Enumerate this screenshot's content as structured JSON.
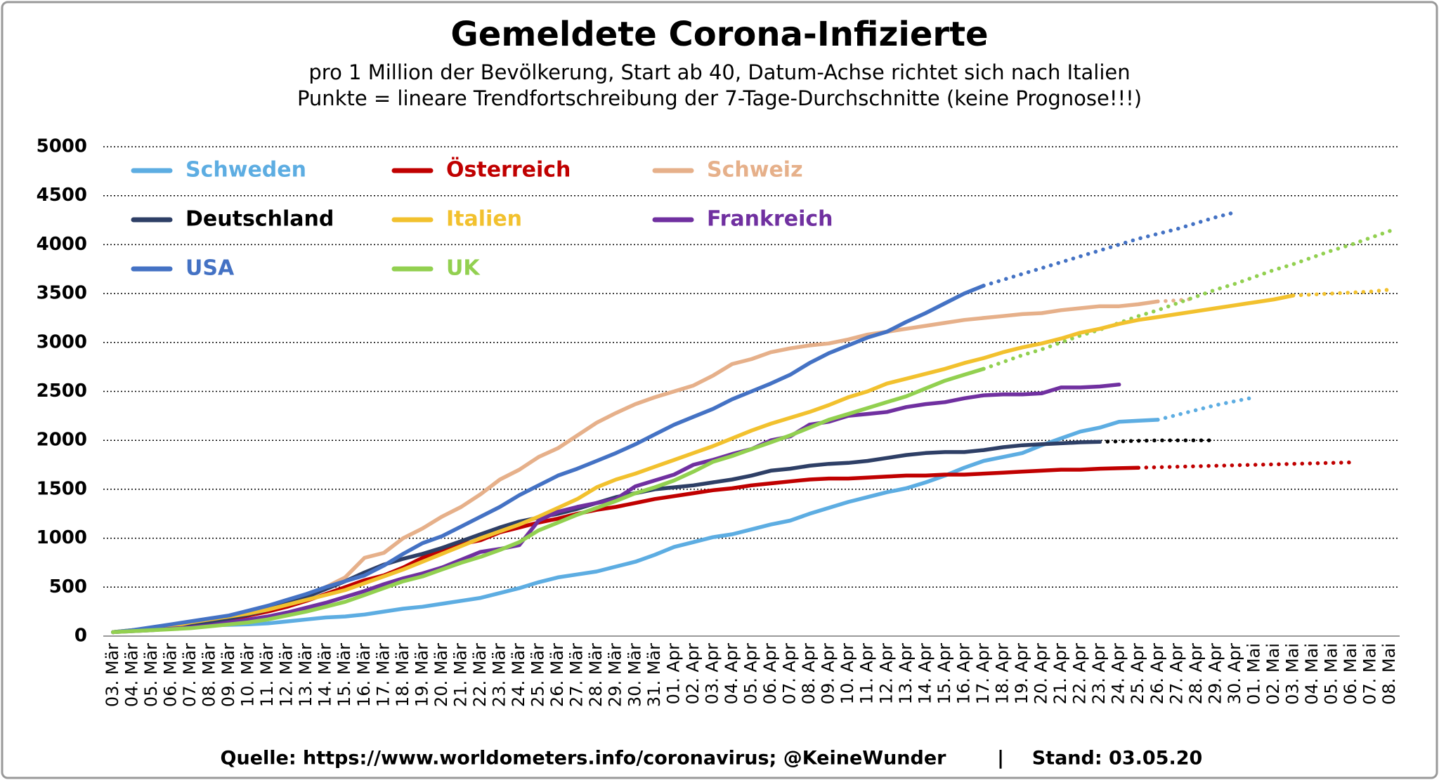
{
  "chart_data": {
    "type": "line",
    "title": "Gemeldete Corona-Infizierte",
    "subtitle": [
      "pro 1 Million der Bevölkerung, Start ab 40, Datum-Achse richtet sich nach Italien",
      "Punkte = lineare Trendfortschreibung der 7-Tage-Durchschnitte (keine Prognose!!!)"
    ],
    "footer": [
      "Quelle: https://www.worldometers.info/coronavirus; @KeineWunder",
      "|",
      "Stand: 03.05.20"
    ],
    "categories": [
      "03. Mär",
      "04. Mär",
      "05. Mär",
      "06. Mär",
      "07. Mär",
      "08. Mär",
      "09. Mär",
      "10. Mär",
      "11. Mär",
      "12. Mär",
      "13. Mär",
      "14. Mär",
      "15. Mär",
      "16. Mär",
      "17. Mär",
      "18. Mär",
      "19. Mär",
      "20. Mär",
      "21. Mär",
      "22. Mär",
      "23. Mär",
      "24. Mär",
      "25. Mär",
      "26. Mär",
      "27. Mär",
      "28. Mär",
      "29. Mär",
      "30. Mär",
      "31. Mär",
      "01. Apr",
      "02. Apr",
      "03. Apr",
      "04. Apr",
      "05. Apr",
      "06. Apr",
      "07. Apr",
      "08. Apr",
      "09. Apr",
      "10. Apr",
      "11. Apr",
      "12. Apr",
      "13. Apr",
      "14. Apr",
      "15. Apr",
      "16. Apr",
      "17. Apr",
      "18. Apr",
      "19. Apr",
      "20. Apr",
      "21. Apr",
      "22. Apr",
      "23. Apr",
      "24. Apr",
      "25. Apr",
      "26. Apr",
      "27. Apr",
      "28. Apr",
      "29. Apr",
      "30. Apr",
      "01. Mai",
      "02. Mai",
      "03. Mai",
      "04. Mai",
      "05. Mai",
      "06. Mai",
      "07. Mai",
      "08. Mai"
    ],
    "ylim": [
      0,
      5000
    ],
    "yticks": [
      0,
      500,
      1000,
      1500,
      2000,
      2500,
      3000,
      3500,
      4000,
      4500,
      5000
    ],
    "grid": true,
    "series": [
      {
        "name": "Schweden",
        "color": "#5dade2",
        "values": [
          40,
          60,
          80,
          90,
          100,
          110,
          115,
          120,
          130,
          150,
          170,
          190,
          200,
          220,
          250,
          280,
          300,
          330,
          360,
          390,
          440,
          490,
          550,
          600,
          630,
          660,
          710,
          760,
          830,
          910,
          960,
          1010,
          1040,
          1090,
          1140,
          1180,
          1250,
          1310,
          1370,
          1420,
          1470,
          1510,
          1570,
          1640,
          1720,
          1790,
          1830,
          1870,
          1950,
          2020,
          2090,
          2130,
          2190,
          2200,
          2210,
          null,
          null,
          null,
          null,
          null,
          null,
          null,
          null,
          null,
          null,
          null,
          null
        ],
        "trend": [
          null,
          null,
          null,
          null,
          null,
          null,
          null,
          null,
          null,
          null,
          null,
          null,
          null,
          null,
          null,
          null,
          null,
          null,
          null,
          null,
          null,
          null,
          null,
          null,
          null,
          null,
          null,
          null,
          null,
          null,
          null,
          null,
          null,
          null,
          null,
          null,
          null,
          null,
          null,
          null,
          null,
          null,
          null,
          null,
          null,
          null,
          null,
          null,
          null,
          null,
          null,
          null,
          null,
          null,
          2210,
          2260,
          2310,
          2360,
          2400,
          2440,
          null,
          null,
          null,
          null,
          null,
          null,
          null
        ]
      },
      {
        "name": "Österreich",
        "color": "#c00000",
        "values": [
          40,
          55,
          70,
          85,
          110,
          140,
          170,
          210,
          250,
          300,
          360,
          430,
          500,
          570,
          620,
          700,
          800,
          880,
          940,
          980,
          1060,
          1110,
          1160,
          1200,
          1250,
          1290,
          1320,
          1360,
          1400,
          1430,
          1460,
          1490,
          1510,
          1540,
          1560,
          1580,
          1600,
          1610,
          1610,
          1620,
          1630,
          1640,
          1640,
          1650,
          1650,
          1660,
          1670,
          1680,
          1690,
          1700,
          1700,
          1710,
          1715,
          1720,
          null,
          null,
          null,
          null,
          null,
          null,
          null,
          null,
          null,
          null,
          null,
          null,
          null
        ],
        "trend": [
          null,
          null,
          null,
          null,
          null,
          null,
          null,
          null,
          null,
          null,
          null,
          null,
          null,
          null,
          null,
          null,
          null,
          null,
          null,
          null,
          null,
          null,
          null,
          null,
          null,
          null,
          null,
          null,
          null,
          null,
          null,
          null,
          null,
          null,
          null,
          null,
          null,
          null,
          null,
          null,
          null,
          null,
          null,
          null,
          null,
          null,
          null,
          null,
          null,
          null,
          null,
          null,
          null,
          1720,
          1725,
          1730,
          1735,
          1740,
          1745,
          1750,
          1755,
          1760,
          1765,
          1770,
          1775,
          null,
          null
        ]
      },
      {
        "name": "Schweiz",
        "color": "#e6b08a",
        "values": [
          40,
          60,
          80,
          100,
          130,
          160,
          200,
          250,
          300,
          360,
          420,
          500,
          600,
          800,
          850,
          1000,
          1100,
          1220,
          1320,
          1450,
          1600,
          1700,
          1830,
          1920,
          2050,
          2180,
          2280,
          2370,
          2440,
          2500,
          2560,
          2660,
          2780,
          2830,
          2900,
          2940,
          2970,
          2990,
          3030,
          3080,
          3110,
          3140,
          3170,
          3200,
          3230,
          3250,
          3270,
          3290,
          3300,
          3330,
          3350,
          3370,
          3370,
          3390,
          3420,
          null,
          null,
          null,
          null,
          null,
          null,
          null,
          null,
          null,
          null,
          null,
          null
        ],
        "trend": [
          null,
          null,
          null,
          null,
          null,
          null,
          null,
          null,
          null,
          null,
          null,
          null,
          null,
          null,
          null,
          null,
          null,
          null,
          null,
          null,
          null,
          null,
          null,
          null,
          null,
          null,
          null,
          null,
          null,
          null,
          null,
          null,
          null,
          null,
          null,
          null,
          null,
          null,
          null,
          null,
          null,
          null,
          null,
          null,
          null,
          null,
          null,
          null,
          null,
          null,
          null,
          null,
          null,
          null,
          3420,
          3430,
          3450,
          null,
          null,
          null,
          null,
          null,
          null,
          null,
          null,
          null,
          null
        ]
      },
      {
        "name": "Deutschland",
        "color": "#2e3f66",
        "text_color": "#000000",
        "trend_color": "#000000",
        "values": [
          40,
          55,
          75,
          90,
          110,
          140,
          180,
          220,
          270,
          330,
          400,
          480,
          560,
          650,
          730,
          790,
          840,
          900,
          970,
          1040,
          1110,
          1170,
          1210,
          1250,
          1300,
          1360,
          1420,
          1460,
          1500,
          1520,
          1540,
          1570,
          1600,
          1640,
          1690,
          1710,
          1740,
          1760,
          1770,
          1790,
          1820,
          1850,
          1870,
          1880,
          1880,
          1900,
          1930,
          1950,
          1960,
          1970,
          1980,
          1985,
          null,
          null,
          null,
          null,
          null,
          null,
          null,
          null,
          null,
          null,
          null,
          null,
          null,
          null,
          null
        ],
        "trend": [
          null,
          null,
          null,
          null,
          null,
          null,
          null,
          null,
          null,
          null,
          null,
          null,
          null,
          null,
          null,
          null,
          null,
          null,
          null,
          null,
          null,
          null,
          null,
          null,
          null,
          null,
          null,
          null,
          null,
          null,
          null,
          null,
          null,
          null,
          null,
          null,
          null,
          null,
          null,
          null,
          null,
          null,
          null,
          null,
          null,
          null,
          null,
          null,
          null,
          null,
          null,
          1985,
          1990,
          1995,
          2000,
          2000,
          2000,
          2000,
          null,
          null,
          null,
          null,
          null,
          null,
          null,
          null,
          null
        ]
      },
      {
        "name": "Italien",
        "color": "#f2c12e",
        "values": [
          40,
          60,
          80,
          100,
          140,
          170,
          200,
          230,
          270,
          320,
          370,
          420,
          470,
          540,
          610,
          680,
          760,
          840,
          920,
          1000,
          1070,
          1140,
          1220,
          1310,
          1400,
          1520,
          1600,
          1660,
          1730,
          1800,
          1870,
          1940,
          2020,
          2100,
          2170,
          2230,
          2290,
          2360,
          2440,
          2500,
          2580,
          2630,
          2680,
          2730,
          2790,
          2840,
          2900,
          2950,
          2990,
          3040,
          3100,
          3140,
          3190,
          3230,
          3260,
          3290,
          3320,
          3350,
          3380,
          3410,
          3440,
          3480,
          null,
          null,
          null,
          null,
          null
        ],
        "trend": [
          null,
          null,
          null,
          null,
          null,
          null,
          null,
          null,
          null,
          null,
          null,
          null,
          null,
          null,
          null,
          null,
          null,
          null,
          null,
          null,
          null,
          null,
          null,
          null,
          null,
          null,
          null,
          null,
          null,
          null,
          null,
          null,
          null,
          null,
          null,
          null,
          null,
          null,
          null,
          null,
          null,
          null,
          null,
          null,
          null,
          null,
          null,
          null,
          null,
          null,
          null,
          null,
          null,
          null,
          null,
          null,
          null,
          null,
          null,
          null,
          null,
          3480,
          3490,
          3500,
          3510,
          3520,
          3540
        ]
      },
      {
        "name": "Frankreich",
        "color": "#7030a0",
        "values": [
          40,
          50,
          60,
          75,
          90,
          110,
          140,
          170,
          200,
          240,
          290,
          340,
          400,
          460,
          530,
          590,
          640,
          700,
          780,
          860,
          890,
          930,
          1180,
          1270,
          1320,
          1360,
          1400,
          1530,
          1590,
          1650,
          1750,
          1800,
          1860,
          1910,
          2000,
          2040,
          2160,
          2190,
          2250,
          2270,
          2290,
          2340,
          2370,
          2390,
          2430,
          2460,
          2470,
          2470,
          2480,
          2540,
          2540,
          2550,
          2570,
          null,
          null,
          null,
          null,
          null,
          null,
          null,
          null,
          null,
          null,
          null,
          null,
          null,
          null
        ]
      },
      {
        "name": "USA",
        "color": "#4472c4",
        "values": [
          40,
          60,
          90,
          120,
          150,
          180,
          210,
          260,
          310,
          370,
          430,
          500,
          560,
          620,
          720,
          840,
          950,
          1020,
          1120,
          1220,
          1320,
          1440,
          1540,
          1640,
          1710,
          1790,
          1870,
          1960,
          2060,
          2160,
          2240,
          2320,
          2420,
          2500,
          2580,
          2670,
          2790,
          2890,
          2970,
          3050,
          3110,
          3210,
          3300,
          3400,
          3500,
          3580,
          null,
          null,
          null,
          null,
          null,
          null,
          null,
          null,
          null,
          null,
          null,
          null,
          null,
          null,
          null,
          null,
          null,
          null,
          null,
          null,
          null
        ],
        "trend": [
          null,
          null,
          null,
          null,
          null,
          null,
          null,
          null,
          null,
          null,
          null,
          null,
          null,
          null,
          null,
          null,
          null,
          null,
          null,
          null,
          null,
          null,
          null,
          null,
          null,
          null,
          null,
          null,
          null,
          null,
          null,
          null,
          null,
          null,
          null,
          null,
          null,
          null,
          null,
          null,
          null,
          null,
          null,
          null,
          null,
          3580,
          3640,
          3700,
          3760,
          3820,
          3880,
          3940,
          4000,
          4060,
          4110,
          4160,
          4220,
          4280,
          4330,
          null,
          null,
          null,
          null,
          null,
          null,
          null,
          null
        ]
      },
      {
        "name": "UK",
        "color": "#92d050",
        "values": [
          40,
          50,
          60,
          70,
          80,
          100,
          120,
          140,
          170,
          210,
          250,
          300,
          350,
          420,
          490,
          560,
          610,
          680,
          750,
          810,
          880,
          960,
          1080,
          1160,
          1240,
          1310,
          1380,
          1460,
          1520,
          1590,
          1680,
          1780,
          1840,
          1910,
          1980,
          2050,
          2130,
          2210,
          2270,
          2330,
          2390,
          2450,
          2530,
          2610,
          2670,
          2730,
          null,
          null,
          null,
          null,
          null,
          null,
          null,
          null,
          null,
          null,
          null,
          null,
          null,
          null,
          null,
          null,
          null,
          null,
          null,
          null,
          null
        ],
        "trend": [
          null,
          null,
          null,
          null,
          null,
          null,
          null,
          null,
          null,
          null,
          null,
          null,
          null,
          null,
          null,
          null,
          null,
          null,
          null,
          null,
          null,
          null,
          null,
          null,
          null,
          null,
          null,
          null,
          null,
          null,
          null,
          null,
          null,
          null,
          null,
          null,
          null,
          null,
          null,
          null,
          null,
          null,
          null,
          null,
          null,
          2730,
          2800,
          2870,
          2930,
          3000,
          3070,
          3130,
          3200,
          3270,
          3330,
          3400,
          3470,
          3540,
          3600,
          3670,
          3740,
          3800,
          3870,
          3940,
          4000,
          4070,
          4140
        ]
      }
    ]
  }
}
